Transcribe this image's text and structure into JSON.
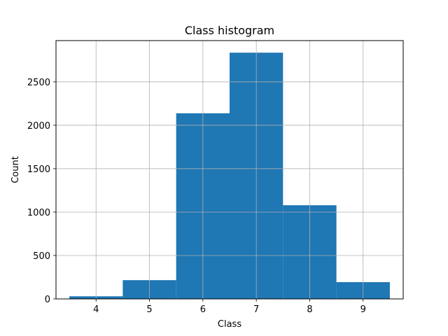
{
  "chart_data": {
    "type": "bar",
    "title": "Class histogram",
    "xlabel": "Class",
    "ylabel": "Count",
    "xlim": [
      3.25,
      9.75
    ],
    "ylim": [
      0,
      2975
    ],
    "x_ticks": [
      4,
      5,
      6,
      7,
      8,
      9
    ],
    "y_ticks": [
      0,
      500,
      1000,
      1500,
      2000,
      2500
    ],
    "grid": true,
    "bins": [
      {
        "x": 4,
        "value": 30
      },
      {
        "x": 5,
        "value": 216
      },
      {
        "x": 6,
        "value": 2138
      },
      {
        "x": 7,
        "value": 2836
      },
      {
        "x": 8,
        "value": 1079
      },
      {
        "x": 9,
        "value": 193
      }
    ],
    "bar_color": "#1f77b4",
    "grid_color": "#b0b0b0"
  }
}
